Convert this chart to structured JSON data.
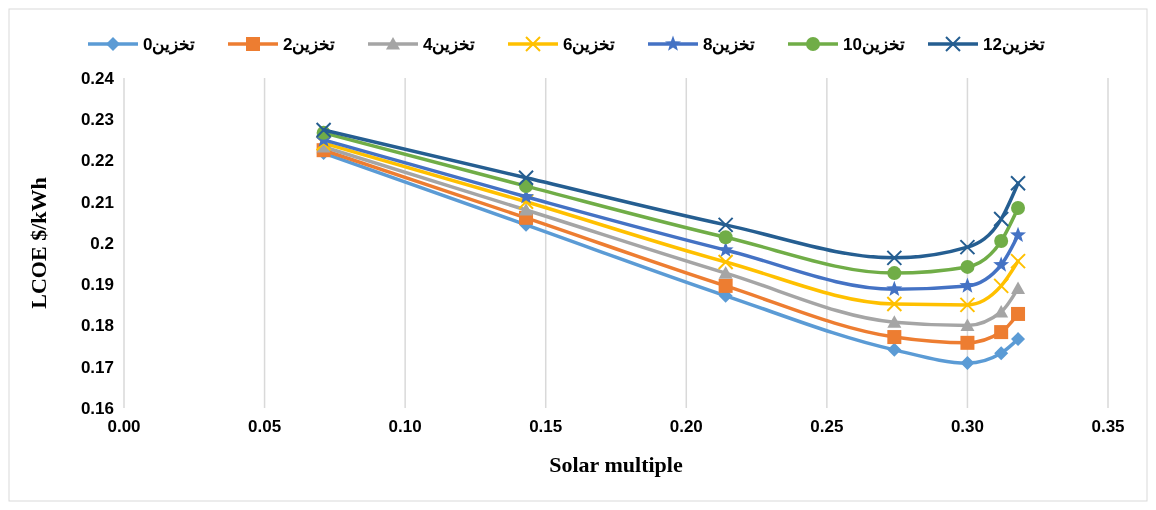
{
  "chart_data": {
    "type": "line",
    "xlabel": "Solar multiple",
    "ylabel": "LCOE $/kWh",
    "x": [
      0.071,
      0.143,
      0.214,
      0.274,
      0.3,
      0.312,
      0.318
    ],
    "xlim": [
      0,
      0.35
    ],
    "xticks": [
      {
        "value": 0,
        "label": "0.00"
      },
      {
        "value": 0.05,
        "label": "0.05"
      },
      {
        "value": 0.1,
        "label": "0.10"
      },
      {
        "value": 0.15,
        "label": "0.15"
      },
      {
        "value": 0.2,
        "label": "0.20"
      },
      {
        "value": 0.25,
        "label": "0.25"
      },
      {
        "value": 0.3,
        "label": "0.30"
      },
      {
        "value": 0.35,
        "label": "0.35"
      }
    ],
    "ylim": [
      0.16,
      0.24
    ],
    "yticks": [
      0.16,
      0.17,
      0.18,
      0.19,
      0.2,
      0.21,
      0.22,
      0.23,
      0.24
    ],
    "grid": "x",
    "legend": "top",
    "series": [
      {
        "name": "تخزين0",
        "color": "#5b9bd5",
        "marker": "diamond",
        "values": [
          0.2218,
          0.2044,
          0.1872,
          0.1741,
          0.1709,
          0.1733,
          0.1767
        ]
      },
      {
        "name": "تخزين2",
        "color": "#ed7d31",
        "marker": "square",
        "values": [
          0.2225,
          0.2061,
          0.1896,
          0.1772,
          0.1758,
          0.1784,
          0.1828
        ]
      },
      {
        "name": "تخزين4",
        "color": "#a5a5a5",
        "marker": "triangle",
        "values": [
          0.2233,
          0.208,
          0.1927,
          0.1808,
          0.18,
          0.1833,
          0.189
        ]
      },
      {
        "name": "تخزين6",
        "color": "#ffc000",
        "marker": "cross",
        "values": [
          0.2242,
          0.21,
          0.1954,
          0.1852,
          0.185,
          0.1896,
          0.1956
        ]
      },
      {
        "name": "تخزين8",
        "color": "#4472c4",
        "marker": "star",
        "values": [
          0.225,
          0.2112,
          0.1983,
          0.1888,
          0.1896,
          0.1947,
          0.2019
        ]
      },
      {
        "name": "تخزين10",
        "color": "#70ad47",
        "marker": "circle",
        "values": [
          0.2267,
          0.2138,
          0.2014,
          0.1927,
          0.1942,
          0.2005,
          0.2085
        ]
      },
      {
        "name": "تخزين12",
        "color": "#255e91",
        "marker": "cross",
        "values": [
          0.2274,
          0.2158,
          0.2044,
          0.1964,
          0.199,
          0.2058,
          0.2145
        ]
      }
    ]
  }
}
